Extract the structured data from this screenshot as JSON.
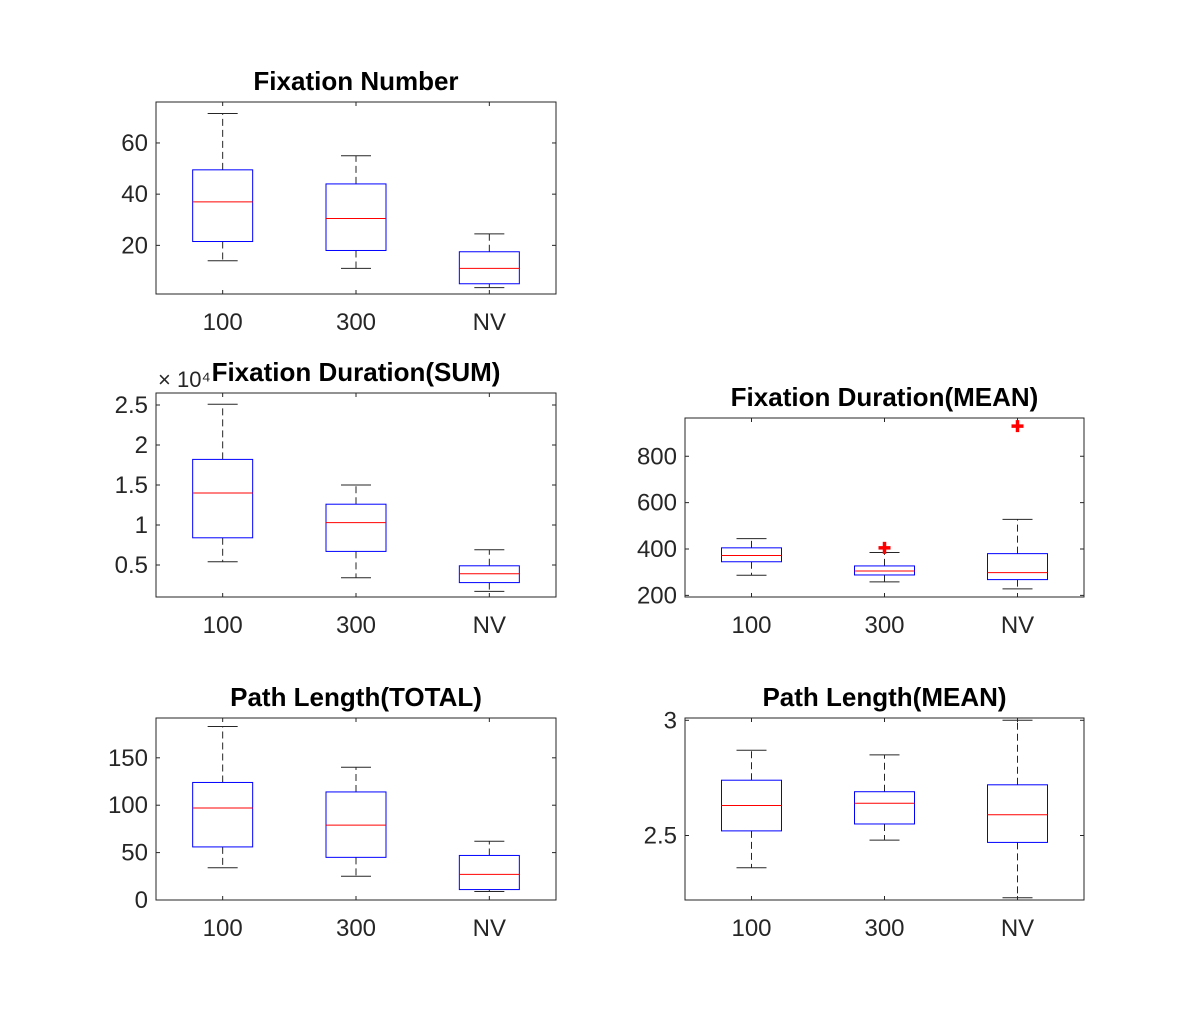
{
  "figure": {
    "background": "#ffffff"
  },
  "chart_data": [
    {
      "type": "box",
      "title": "Fixation Number",
      "xlabel": "",
      "ylabel": "",
      "categories": [
        "100",
        "300",
        "NV"
      ],
      "ylim": [
        1,
        76
      ],
      "yticks": [
        20,
        40,
        60
      ],
      "ytick_labels": [
        "20",
        "40",
        "60"
      ],
      "exponent_label": "",
      "boxes": [
        {
          "whisker_low": 14,
          "q1": 21.5,
          "median": 37,
          "q3": 49.5,
          "whisker_high": 71.5,
          "outliers": []
        },
        {
          "whisker_low": 11,
          "q1": 18,
          "median": 30.5,
          "q3": 44,
          "whisker_high": 55,
          "outliers": []
        },
        {
          "whisker_low": 3.5,
          "q1": 5,
          "median": 11,
          "q3": 17.5,
          "whisker_high": 24.5,
          "outliers": []
        }
      ]
    },
    {
      "type": "box",
      "title": "Fixation Duration(SUM)",
      "xlabel": "",
      "ylabel": "",
      "categories": [
        "100",
        "300",
        "NV"
      ],
      "ylim": [
        0.1,
        2.65
      ],
      "yticks": [
        0.5,
        1,
        1.5,
        2,
        2.5
      ],
      "ytick_labels": [
        "0.5",
        "1",
        "1.5",
        "2",
        "2.5"
      ],
      "exponent_label": "× 10⁴",
      "boxes": [
        {
          "whisker_low": 0.54,
          "q1": 0.84,
          "median": 1.4,
          "q3": 1.82,
          "whisker_high": 2.51,
          "outliers": []
        },
        {
          "whisker_low": 0.34,
          "q1": 0.67,
          "median": 1.03,
          "q3": 1.26,
          "whisker_high": 1.5,
          "outliers": []
        },
        {
          "whisker_low": 0.17,
          "q1": 0.28,
          "median": 0.39,
          "q3": 0.49,
          "whisker_high": 0.69,
          "outliers": []
        }
      ]
    },
    {
      "type": "box",
      "title": "Fixation Duration(MEAN)",
      "xlabel": "",
      "ylabel": "",
      "categories": [
        "100",
        "300",
        "NV"
      ],
      "ylim": [
        193,
        965
      ],
      "yticks": [
        200,
        400,
        600,
        800
      ],
      "ytick_labels": [
        "200",
        "400",
        "600",
        "800"
      ],
      "exponent_label": "",
      "boxes": [
        {
          "whisker_low": 287,
          "q1": 345,
          "median": 372,
          "q3": 405,
          "whisker_high": 445,
          "outliers": []
        },
        {
          "whisker_low": 258,
          "q1": 288,
          "median": 305,
          "q3": 327,
          "whisker_high": 385,
          "outliers": [
            405
          ]
        },
        {
          "whisker_low": 228,
          "q1": 268,
          "median": 298,
          "q3": 380,
          "whisker_high": 528,
          "outliers": [
            930
          ]
        }
      ]
    },
    {
      "type": "box",
      "title": "Path Length(TOTAL)",
      "xlabel": "",
      "ylabel": "",
      "categories": [
        "100",
        "300",
        "NV"
      ],
      "ylim": [
        0,
        192
      ],
      "yticks": [
        0,
        50,
        100,
        150
      ],
      "ytick_labels": [
        "0",
        "50",
        "100",
        "150"
      ],
      "exponent_label": "",
      "boxes": [
        {
          "whisker_low": 34,
          "q1": 56,
          "median": 97,
          "q3": 124,
          "whisker_high": 183,
          "outliers": []
        },
        {
          "whisker_low": 25,
          "q1": 45,
          "median": 79,
          "q3": 114,
          "whisker_high": 140,
          "outliers": []
        },
        {
          "whisker_low": 9,
          "q1": 11,
          "median": 27,
          "q3": 47,
          "whisker_high": 62,
          "outliers": []
        }
      ]
    },
    {
      "type": "box",
      "title": "Path Length(MEAN)",
      "xlabel": "",
      "ylabel": "",
      "categories": [
        "100",
        "300",
        "NV"
      ],
      "ylim": [
        2.22,
        3.01
      ],
      "yticks": [
        2.5,
        3
      ],
      "ytick_labels": [
        "2.5",
        "3"
      ],
      "exponent_label": "",
      "boxes": [
        {
          "whisker_low": 2.36,
          "q1": 2.52,
          "median": 2.63,
          "q3": 2.74,
          "whisker_high": 2.87,
          "outliers": []
        },
        {
          "whisker_low": 2.48,
          "q1": 2.55,
          "median": 2.64,
          "q3": 2.69,
          "whisker_high": 2.85,
          "outliers": []
        },
        {
          "whisker_low": 2.23,
          "q1": 2.47,
          "median": 2.59,
          "q3": 2.72,
          "whisker_high": 3.0,
          "outliers": []
        }
      ]
    }
  ],
  "style": {
    "box_color": "#0000ff",
    "median_color": "#ff0000",
    "whisker_color": "#262626",
    "outlier_color": "#ff0000",
    "axis_color": "#262626"
  }
}
